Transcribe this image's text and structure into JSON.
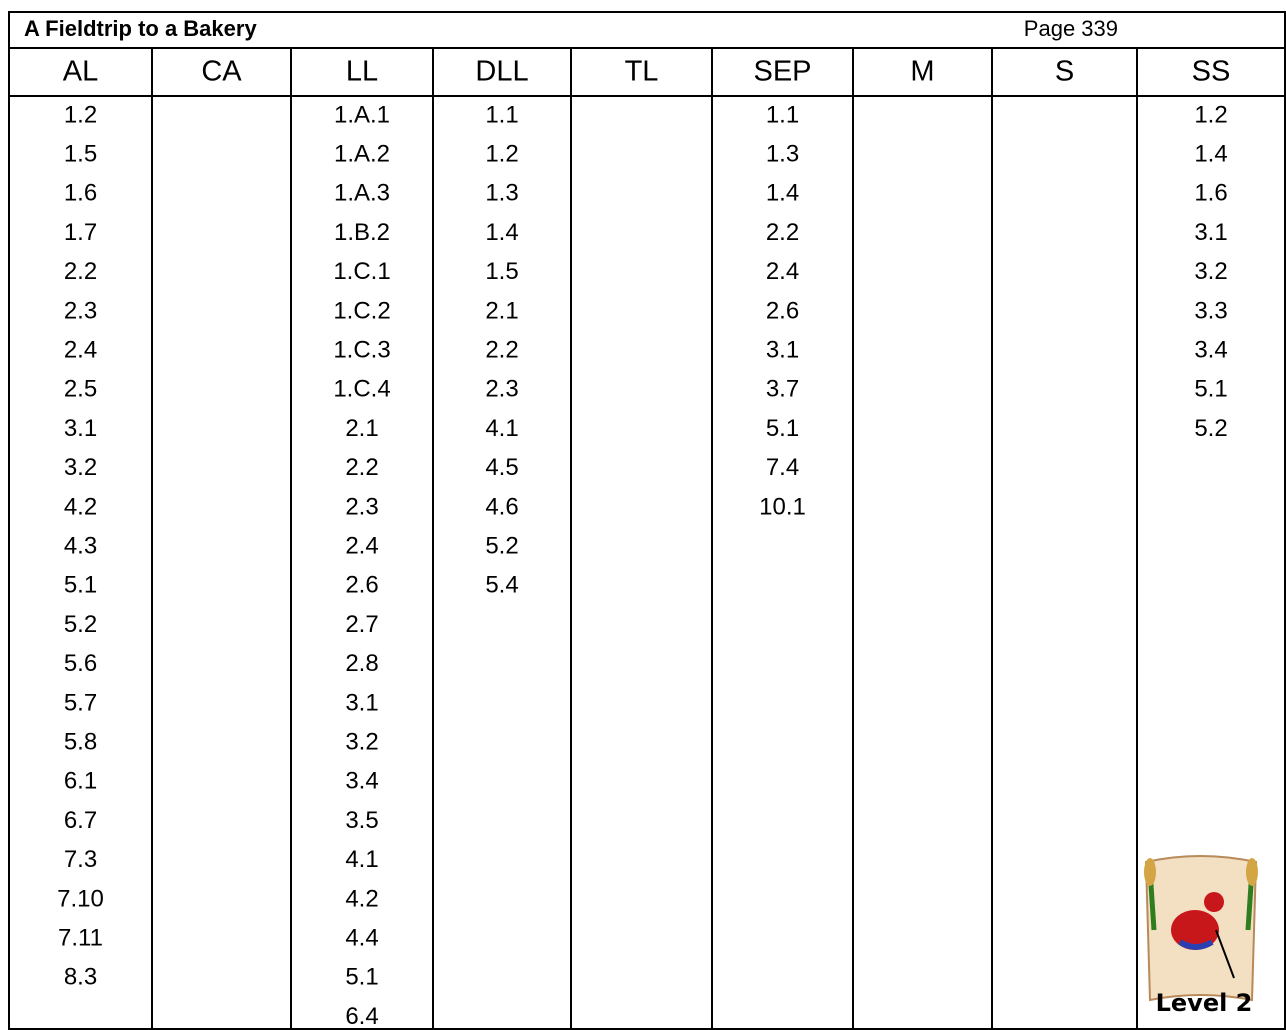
{
  "header": {
    "title": "A Fieldtrip to a Bakery",
    "page": "Page 339"
  },
  "table": {
    "columns": [
      {
        "name": "AL",
        "entries": [
          "1.2",
          "1.5",
          "1.6",
          "1.7",
          "2.2",
          "2.3",
          "2.4",
          "2.5",
          "3.1",
          "3.2",
          "4.2",
          "4.3",
          "5.1",
          "5.2",
          "5.6",
          "5.7",
          "5.8",
          "6.1",
          "6.7",
          "7.3",
          "7.10",
          "7.11",
          "8.3"
        ]
      },
      {
        "name": "CA",
        "entries": []
      },
      {
        "name": "LL",
        "entries": [
          "1.A.1",
          "1.A.2",
          "1.A.3",
          "1.B.2",
          "1.C.1",
          "1.C.2",
          "1.C.3",
          "1.C.4",
          "2.1",
          "2.2",
          "2.3",
          "2.4",
          "2.6",
          "2.7",
          "2.8",
          "3.1",
          "3.2",
          "3.4",
          "3.5",
          "4.1",
          "4.2",
          "4.4",
          "5.1",
          "6.4"
        ]
      },
      {
        "name": "DLL",
        "entries": [
          "1.1",
          "1.2",
          "1.3",
          "1.4",
          "1.5",
          "2.1",
          "2.2",
          "2.3",
          "4.1",
          "4.5",
          "4.6",
          "5.2",
          "5.4"
        ]
      },
      {
        "name": "TL",
        "entries": []
      },
      {
        "name": "SEP",
        "entries": [
          "1.1",
          "1.3",
          "1.4",
          "2.2",
          "2.4",
          "2.6",
          "3.1",
          "3.7",
          "5.1",
          "7.4",
          "10.1"
        ]
      },
      {
        "name": "M",
        "entries": []
      },
      {
        "name": "S",
        "entries": []
      },
      {
        "name": "SS",
        "entries": [
          "1.2",
          "1.4",
          "1.6",
          "3.1",
          "3.2",
          "3.3",
          "3.4",
          "5.1",
          "5.2"
        ]
      }
    ]
  },
  "badge": {
    "label": "Level 2"
  }
}
